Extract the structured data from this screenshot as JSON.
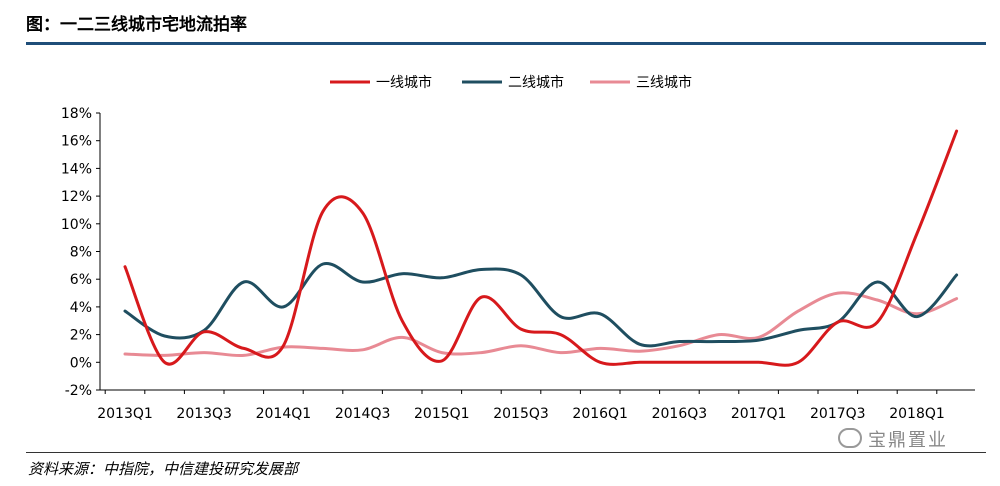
{
  "header": {
    "title": "图：一二三线城市宅地流拍率"
  },
  "footer": {
    "source": "资料来源：中指院，中信建投研究发展部",
    "watermark": "宝鼎置业"
  },
  "chart_data": {
    "type": "line",
    "title": "",
    "xlabel": "",
    "ylabel": "",
    "ylim": [
      -2,
      18
    ],
    "yticks": [
      -2,
      0,
      2,
      4,
      6,
      8,
      10,
      12,
      14,
      16,
      18
    ],
    "ytick_labels": [
      "-2%",
      "0%",
      "2%",
      "4%",
      "6%",
      "8%",
      "10%",
      "12%",
      "14%",
      "16%",
      "18%"
    ],
    "x": [
      "2013Q1",
      "2013Q2",
      "2013Q3",
      "2013Q4",
      "2014Q1",
      "2014Q2",
      "2014Q3",
      "2014Q4",
      "2015Q1",
      "2015Q2",
      "2015Q3",
      "2015Q4",
      "2016Q1",
      "2016Q2",
      "2016Q3",
      "2016Q4",
      "2017Q1",
      "2017Q2",
      "2017Q3",
      "2017Q4",
      "2018Q1",
      "2018Q2"
    ],
    "xtick_labels": [
      "2013Q1",
      "2013Q3",
      "2014Q1",
      "2014Q3",
      "2015Q1",
      "2015Q3",
      "2016Q1",
      "2016Q3",
      "2017Q1",
      "2017Q3",
      "2018Q1"
    ],
    "grid": false,
    "legend_position": "top-center",
    "series": [
      {
        "name": "一线城市",
        "color": "#d7191c",
        "values": [
          6.9,
          0.0,
          2.2,
          1.0,
          1.2,
          10.9,
          10.8,
          3.0,
          0.1,
          4.7,
          2.4,
          2.0,
          0.0,
          0.0,
          0.0,
          0.0,
          0.0,
          0.0,
          2.9,
          2.9,
          9.3,
          16.7
        ]
      },
      {
        "name": "二线城市",
        "color": "#1f4e60",
        "values": [
          3.7,
          1.9,
          2.3,
          5.8,
          4.0,
          7.1,
          5.8,
          6.4,
          6.1,
          6.7,
          6.3,
          3.3,
          3.5,
          1.3,
          1.5,
          1.5,
          1.6,
          2.3,
          2.9,
          5.8,
          3.3,
          6.3
        ]
      },
      {
        "name": "三线城市",
        "color": "#e88a94",
        "values": [
          0.6,
          0.5,
          0.7,
          0.5,
          1.1,
          1.0,
          0.9,
          1.8,
          0.7,
          0.7,
          1.2,
          0.7,
          1.0,
          0.8,
          1.2,
          2.0,
          1.8,
          3.7,
          5.0,
          4.5,
          3.5,
          4.6
        ]
      }
    ]
  }
}
